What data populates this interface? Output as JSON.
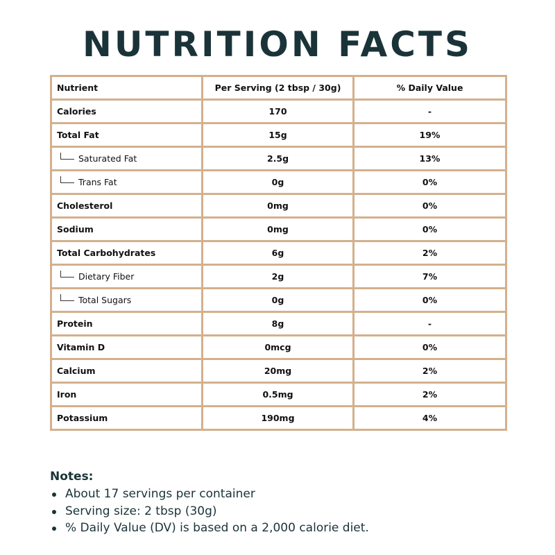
{
  "title": "NUTRITION FACTS",
  "table": {
    "headers": [
      "Nutrient",
      "Per Serving (2 tbsp / 30g)",
      "% Daily Value"
    ],
    "rows": [
      {
        "nutrient": "Calories",
        "per_serving": "170",
        "daily_value": "-",
        "sub": false
      },
      {
        "nutrient": "Total Fat",
        "per_serving": "15g",
        "daily_value": "19%",
        "sub": false
      },
      {
        "nutrient": "Saturated Fat",
        "per_serving": "2.5g",
        "daily_value": "13%",
        "sub": true
      },
      {
        "nutrient": "Trans Fat",
        "per_serving": "0g",
        "daily_value": "0%",
        "sub": true
      },
      {
        "nutrient": "Cholesterol",
        "per_serving": "0mg",
        "daily_value": "0%",
        "sub": false
      },
      {
        "nutrient": "Sodium",
        "per_serving": "0mg",
        "daily_value": "0%",
        "sub": false
      },
      {
        "nutrient": "Total Carbohydrates",
        "per_serving": "6g",
        "daily_value": "2%",
        "sub": false
      },
      {
        "nutrient": "Dietary Fiber",
        "per_serving": "2g",
        "daily_value": "7%",
        "sub": true
      },
      {
        "nutrient": "Total Sugars",
        "per_serving": "0g",
        "daily_value": "0%",
        "sub": true
      },
      {
        "nutrient": "Protein",
        "per_serving": "8g",
        "daily_value": "-",
        "sub": false
      },
      {
        "nutrient": "Vitamin D",
        "per_serving": "0mcg",
        "daily_value": "0%",
        "sub": false
      },
      {
        "nutrient": "Calcium",
        "per_serving": "20mg",
        "daily_value": "2%",
        "sub": false
      },
      {
        "nutrient": "Iron",
        "per_serving": "0.5mg",
        "daily_value": "2%",
        "sub": false
      },
      {
        "nutrient": "Potassium",
        "per_serving": "190mg",
        "daily_value": "4%",
        "sub": false
      }
    ]
  },
  "notes": {
    "heading": "Notes:",
    "items": [
      "About 17 servings per container",
      "Serving size: 2 tbsp (30g)",
      "% Daily Value (DV) is based on a 2,000 calorie diet."
    ]
  },
  "colors": {
    "title": "#1a3338",
    "border": "#d3b08d",
    "text": "#111111"
  },
  "icons": {
    "sub_item": "tree-branch-icon",
    "bullet": "bullet-dot-icon"
  }
}
